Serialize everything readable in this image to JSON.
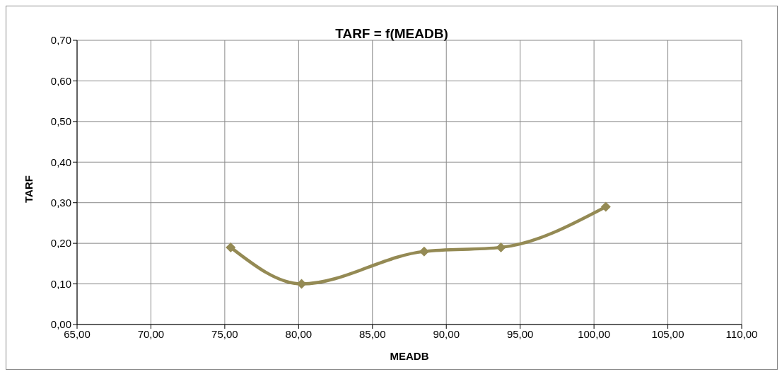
{
  "chart_data": {
    "type": "line",
    "title": "TARF = f(MEADB)",
    "xlabel": "MEADB",
    "ylabel": "TARF",
    "x": [
      75.4,
      80.2,
      88.5,
      93.7,
      100.8
    ],
    "series": [
      {
        "color": "#948a54",
        "values": [
          0.19,
          0.1,
          0.18,
          0.19,
          0.29
        ]
      }
    ],
    "xlim": [
      65,
      110
    ],
    "xticks": [
      {
        "value": 65,
        "label": "65,00"
      },
      {
        "value": 70,
        "label": "70,00"
      },
      {
        "value": 75,
        "label": "75,00"
      },
      {
        "value": 80,
        "label": "80,00"
      },
      {
        "value": 85,
        "label": "85,00"
      },
      {
        "value": 90,
        "label": "90,00"
      },
      {
        "value": 95,
        "label": "95,00"
      },
      {
        "value": 100,
        "label": "100,00"
      },
      {
        "value": 105,
        "label": "105,00"
      },
      {
        "value": 110,
        "label": "110,00"
      }
    ],
    "ylim": [
      0,
      0.7
    ],
    "yticks": [
      {
        "value": 0,
        "label": "0,00"
      },
      {
        "value": 0.1,
        "label": "0,10"
      },
      {
        "value": 0.2,
        "label": "0,20"
      },
      {
        "value": 0.3,
        "label": "0,30"
      },
      {
        "value": 0.4,
        "label": "0,40"
      },
      {
        "value": 0.5,
        "label": "0,50"
      },
      {
        "value": 0.6,
        "label": "0,60"
      },
      {
        "value": 0.7,
        "label": "0,70"
      }
    ],
    "grid": true,
    "legend": false,
    "marker": "diamond",
    "line_style": "solid"
  }
}
